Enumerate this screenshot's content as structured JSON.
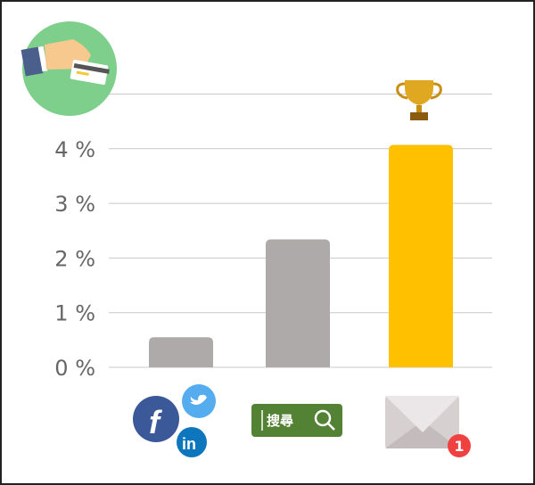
{
  "chart_data": {
    "type": "bar",
    "categories": [
      "social",
      "search",
      "email"
    ],
    "values": [
      0.55,
      2.34,
      4.07
    ],
    "ylim": [
      0,
      5
    ],
    "yticks": [
      0,
      1,
      2,
      3,
      4
    ],
    "ytick_labels": [
      "0 %",
      "1 %",
      "2 %",
      "3 %",
      "4 %"
    ],
    "grid": true,
    "colors": [
      "#aeaaaa",
      "#aeaaaa",
      "#ffc000"
    ],
    "category_icons": [
      "facebook-twitter-linkedin-icons",
      "search-box-icon",
      "envelope-notification-icon"
    ],
    "search_label": "搜尋",
    "notification_count": "1",
    "winner_icon": "trophy-icon",
    "header_icon": "hand-credit-card-icon"
  }
}
